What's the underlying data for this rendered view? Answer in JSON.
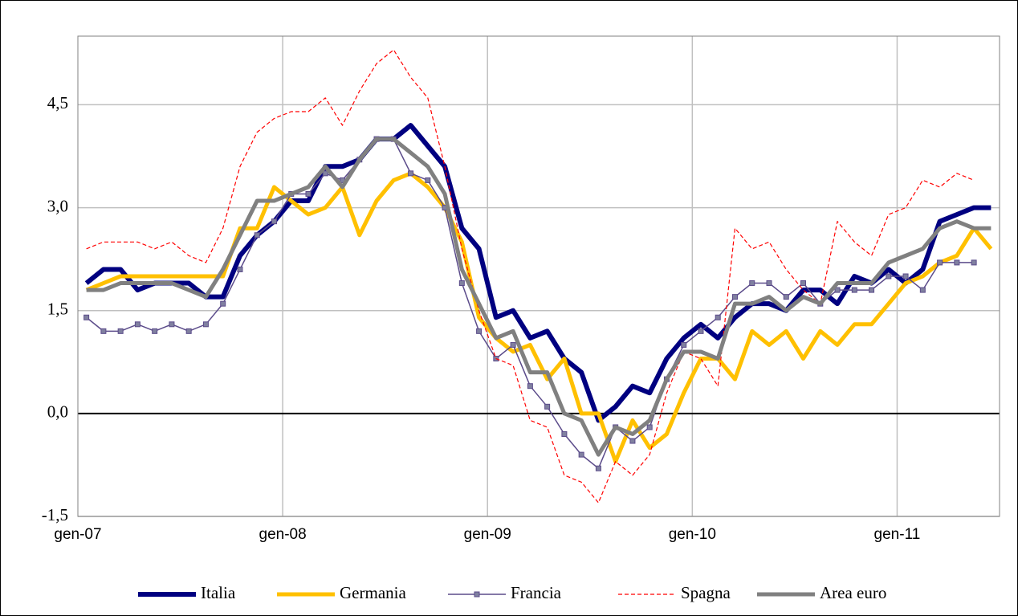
{
  "chart_data": {
    "type": "line",
    "categories": [
      "gen-07",
      null,
      null,
      null,
      null,
      null,
      null,
      null,
      null,
      null,
      null,
      null,
      "gen-08",
      null,
      null,
      null,
      null,
      null,
      null,
      null,
      null,
      null,
      null,
      null,
      "gen-09",
      null,
      null,
      null,
      null,
      null,
      null,
      null,
      null,
      null,
      null,
      null,
      "gen-10",
      null,
      null,
      null,
      null,
      null,
      null,
      null,
      null,
      null,
      null,
      null,
      "gen-11",
      null,
      null,
      null,
      null,
      null
    ],
    "ylim": [
      -1.5,
      5.5
    ],
    "yticks": [
      {
        "value": -1.5,
        "label": "-1,5"
      },
      {
        "value": 0,
        "label": "0,0"
      },
      {
        "value": 1.5,
        "label": "1,5"
      },
      {
        "value": 3,
        "label": "3,0"
      },
      {
        "value": 4.5,
        "label": "4,5"
      }
    ],
    "grid": true,
    "legend": "bottom",
    "series": [
      {
        "name": "Italia",
        "color": "#000080",
        "width": 6,
        "dash": false,
        "marker": "none",
        "values": [
          1.9,
          2.1,
          2.1,
          1.8,
          1.9,
          1.9,
          1.9,
          1.7,
          1.7,
          2.3,
          2.6,
          2.8,
          3.1,
          3.1,
          3.6,
          3.6,
          3.7,
          4.0,
          4.0,
          4.2,
          3.9,
          3.6,
          2.7,
          2.4,
          1.4,
          1.5,
          1.1,
          1.2,
          0.8,
          0.6,
          -0.1,
          0.1,
          0.4,
          0.3,
          0.8,
          1.1,
          1.3,
          1.1,
          1.4,
          1.6,
          1.6,
          1.5,
          1.8,
          1.8,
          1.6,
          2.0,
          1.9,
          2.1,
          1.9,
          2.1,
          2.8,
          2.9,
          3.0,
          3.0
        ]
      },
      {
        "name": "Germania",
        "color": "#ffc000",
        "width": 5,
        "dash": false,
        "marker": "none",
        "values": [
          1.8,
          1.9,
          2.0,
          2.0,
          2.0,
          2.0,
          2.0,
          2.0,
          2.0,
          2.7,
          2.7,
          3.3,
          3.1,
          2.9,
          3.0,
          3.3,
          2.6,
          3.1,
          3.4,
          3.5,
          3.3,
          3.0,
          2.5,
          1.4,
          1.1,
          0.9,
          1.0,
          0.5,
          0.8,
          0.0,
          0.0,
          -0.7,
          -0.1,
          -0.5,
          -0.3,
          0.3,
          0.8,
          0.8,
          0.5,
          1.2,
          1.0,
          1.2,
          0.8,
          1.2,
          1.0,
          1.3,
          1.3,
          1.6,
          1.9,
          2.0,
          2.2,
          2.3,
          2.7,
          2.4
        ]
      },
      {
        "name": "Francia",
        "color": "#5b4b8a",
        "width": 1.5,
        "dash": false,
        "marker": "square",
        "values": [
          1.4,
          1.2,
          1.2,
          1.3,
          1.2,
          1.3,
          1.2,
          1.3,
          1.6,
          2.1,
          2.6,
          2.8,
          3.2,
          3.2,
          3.5,
          3.4,
          3.7,
          4.0,
          4.0,
          3.5,
          3.4,
          3.0,
          1.9,
          1.2,
          0.8,
          1.0,
          0.4,
          0.1,
          -0.3,
          -0.6,
          -0.8,
          -0.2,
          -0.4,
          -0.2,
          0.5,
          1.0,
          1.2,
          1.4,
          1.7,
          1.9,
          1.9,
          1.7,
          1.9,
          1.6,
          1.8,
          1.8,
          1.8,
          2.0,
          2.0,
          1.8,
          2.2,
          2.2,
          2.2,
          null
        ]
      },
      {
        "name": "Spagna",
        "color": "#ff0000",
        "width": 1.2,
        "dash": true,
        "marker": "none",
        "values": [
          2.4,
          2.5,
          2.5,
          2.5,
          2.4,
          2.5,
          2.3,
          2.2,
          2.7,
          3.6,
          4.1,
          4.3,
          4.4,
          4.4,
          4.6,
          4.2,
          4.7,
          5.1,
          5.3,
          4.9,
          4.6,
          3.6,
          2.4,
          1.5,
          0.8,
          0.7,
          -0.1,
          -0.2,
          -0.9,
          -1.0,
          -1.3,
          -0.7,
          -0.9,
          -0.6,
          0.3,
          0.9,
          0.8,
          0.4,
          2.7,
          2.4,
          2.5,
          2.1,
          1.8,
          1.6,
          2.8,
          2.5,
          2.3,
          2.9,
          3.0,
          3.4,
          3.3,
          3.5,
          3.4,
          null
        ]
      },
      {
        "name": "Area euro",
        "color": "#808080",
        "width": 5,
        "dash": false,
        "marker": "none",
        "values": [
          1.8,
          1.8,
          1.9,
          1.9,
          1.9,
          1.9,
          1.8,
          1.7,
          2.1,
          2.6,
          3.1,
          3.1,
          3.2,
          3.3,
          3.6,
          3.3,
          3.7,
          4.0,
          4.0,
          3.8,
          3.6,
          3.2,
          2.1,
          1.6,
          1.1,
          1.2,
          0.6,
          0.6,
          0.0,
          -0.1,
          -0.6,
          -0.2,
          -0.3,
          -0.1,
          0.5,
          0.9,
          0.9,
          0.8,
          1.6,
          1.6,
          1.7,
          1.5,
          1.7,
          1.6,
          1.9,
          1.9,
          1.9,
          2.2,
          2.3,
          2.4,
          2.7,
          2.8,
          2.7,
          2.7
        ]
      }
    ]
  }
}
